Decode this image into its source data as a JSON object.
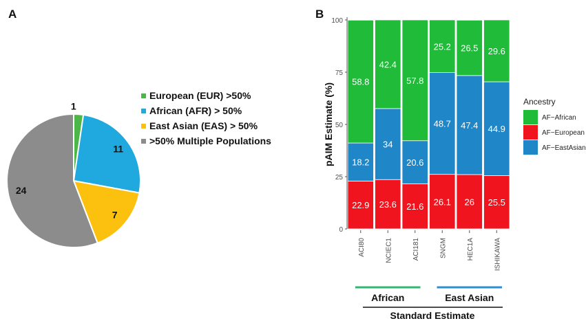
{
  "panel_a": {
    "letter": "A",
    "chart_data": {
      "type": "pie",
      "slices": [
        {
          "name": "European (EUR) >50%",
          "value": 1,
          "label": "1",
          "color": "#4cb748"
        },
        {
          "name": "African (AFR) > 50%",
          "value": 11,
          "label": "11",
          "color": "#20a9df"
        },
        {
          "name": "East Asian (EAS) > 50%",
          "value": 7,
          "label": "7",
          "color": "#fcc10f"
        },
        {
          "name": ">50% Multiple Populations",
          "value": 24,
          "label": "24",
          "color": "#8c8c8c"
        }
      ]
    }
  },
  "panel_b": {
    "letter": "B",
    "chart_data": {
      "type": "bar",
      "stacked": true,
      "ylabel": "pAIM Estimate (%)",
      "ylim": [
        0,
        100
      ],
      "yticks": [
        "0",
        "25",
        "50",
        "75",
        "100"
      ],
      "categories": [
        "ACI80",
        "NCIEC1",
        "ACI181",
        "SNGM",
        "HEC1A",
        "ISHIKAWA"
      ],
      "legend_title": "Ancestry",
      "legend_position": "right",
      "series": [
        {
          "name": "AF−European",
          "color": "#f0141e",
          "values": [
            22.9,
            23.6,
            21.6,
            26.1,
            26,
            25.5
          ],
          "labels": [
            "22.9",
            "23.6",
            "21.6",
            "26.1",
            "26",
            "25.5"
          ]
        },
        {
          "name": "AF−EastAsian",
          "color": "#1f86c8",
          "values": [
            18.2,
            34,
            20.6,
            48.7,
            47.4,
            44.9
          ],
          "labels": [
            "18.2",
            "34",
            "20.6",
            "48.7",
            "47.4",
            "44.9"
          ]
        },
        {
          "name": "AF−African",
          "color": "#1fbb39",
          "values": [
            58.8,
            42.4,
            57.8,
            25.2,
            26.5,
            29.6
          ],
          "labels": [
            "58.8",
            "42.4",
            "57.8",
            "25.2",
            "26.5",
            "29.6"
          ]
        }
      ],
      "legend_order": [
        "AF−African",
        "AF−European",
        "AF−EastAsian"
      ],
      "groups": [
        {
          "label": "African",
          "color": "#2eb872",
          "span": [
            0,
            2
          ]
        },
        {
          "label": "East Asian",
          "color": "#2e8fd0",
          "span": [
            3,
            5
          ]
        }
      ],
      "group_bracket_label": "Standard Estimate"
    }
  }
}
